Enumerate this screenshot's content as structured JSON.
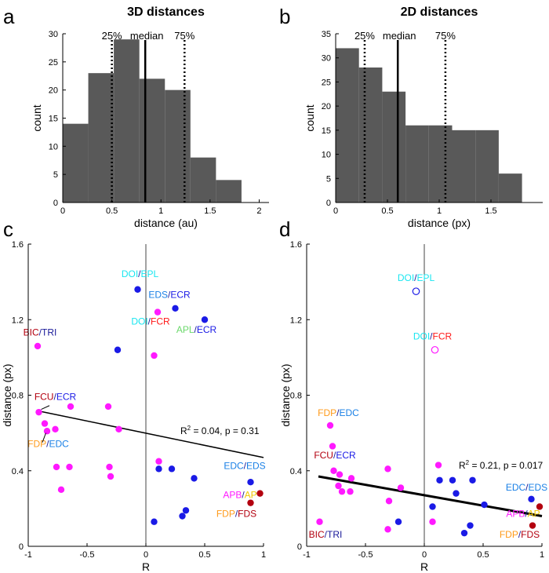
{
  "colors": {
    "bar": "#595959",
    "magenta": "#ff19ff",
    "blue": "#1a1ae6",
    "darkred": "#b3000f",
    "cyan": "#19e6f0",
    "green": "#6bd96b",
    "red": "#ff1a1a",
    "navy": "#1a1a99",
    "orange": "#ff9a1a",
    "lightblue": "#1a80e6",
    "yellow": "#f0c800"
  },
  "chart_data": [
    {
      "id": "a",
      "panel_letter": "a",
      "type": "bar",
      "title": "3D distances",
      "xlabel": "distance (au)",
      "ylabel": "count",
      "xlim": [
        0,
        2.1
      ],
      "ylim": [
        0,
        30
      ],
      "xticks": [
        0,
        0.5,
        1,
        1.5,
        2
      ],
      "xtick_labels": [
        "0",
        "0.5",
        "1",
        "1.5",
        "2"
      ],
      "yticks": [
        0,
        5,
        10,
        15,
        20,
        25,
        30
      ],
      "ytick_labels": [
        "0",
        "5",
        "10",
        "15",
        "20",
        "25",
        "30"
      ],
      "bin_edges": [
        0,
        0.26,
        0.52,
        0.78,
        1.04,
        1.3,
        1.56,
        1.82,
        2.08
      ],
      "counts": [
        14,
        23,
        29,
        22,
        20,
        8,
        4,
        0
      ],
      "vlines": [
        {
          "x": 0.5,
          "style": "dotted",
          "label": "25%"
        },
        {
          "x": 0.84,
          "style": "solid",
          "label": "median"
        },
        {
          "x": 1.24,
          "style": "dotted",
          "label": "75%"
        }
      ]
    },
    {
      "id": "b",
      "panel_letter": "b",
      "type": "bar",
      "title": "2D distances",
      "xlabel": "distance (px)",
      "ylabel": "count",
      "xlim": [
        0,
        2.0
      ],
      "ylim": [
        0,
        35
      ],
      "xticks": [
        0,
        0.5,
        1,
        1.5
      ],
      "xtick_labels": [
        "0",
        "0.5",
        "1",
        "1.5"
      ],
      "yticks": [
        0,
        5,
        10,
        15,
        20,
        25,
        30,
        35
      ],
      "ytick_labels": [
        "0",
        "5",
        "10",
        "15",
        "20",
        "25",
        "30",
        "35"
      ],
      "bin_edges": [
        0,
        0.225,
        0.45,
        0.675,
        0.9,
        1.125,
        1.35,
        1.575,
        1.8
      ],
      "counts": [
        32,
        28,
        23,
        16,
        16,
        15,
        15,
        6
      ],
      "vlines": [
        {
          "x": 0.28,
          "style": "dotted",
          "label": "25%"
        },
        {
          "x": 0.6,
          "style": "solid",
          "label": "median"
        },
        {
          "x": 1.06,
          "style": "dotted",
          "label": "75%"
        }
      ]
    },
    {
      "id": "c",
      "panel_letter": "c",
      "type": "scatter",
      "xlabel": "R",
      "ylabel": "distance (px)",
      "xlim": [
        -1,
        1
      ],
      "ylim": [
        0,
        1.6
      ],
      "xticks": [
        -1,
        -0.5,
        0,
        0.5,
        1
      ],
      "xtick_labels": [
        "-1",
        "-0.5",
        "0",
        "0.5",
        "1"
      ],
      "yticks": [
        0,
        0.4,
        0.8,
        1.2,
        1.6
      ],
      "ytick_labels": [
        "0",
        "0.4",
        "0.8",
        "1.2",
        "1.6"
      ],
      "zero_line": true,
      "fit": {
        "x": [
          -0.9,
          1.0
        ],
        "y": [
          0.715,
          0.47
        ],
        "width": 1.5,
        "label_main": "R",
        "label_sup": "2",
        "label_rest": " = 0.04, p = 0.31"
      },
      "points": [
        {
          "x": -0.07,
          "y": 1.36,
          "color": "blue",
          "filled": true
        },
        {
          "x": 0.25,
          "y": 1.26,
          "color": "blue",
          "filled": true
        },
        {
          "x": 0.5,
          "y": 1.2,
          "color": "blue",
          "filled": true
        },
        {
          "x": 0.1,
          "y": 1.24,
          "color": "magenta",
          "filled": true
        },
        {
          "x": -0.92,
          "y": 1.06,
          "color": "magenta",
          "filled": true
        },
        {
          "x": -0.24,
          "y": 1.04,
          "color": "blue",
          "filled": true
        },
        {
          "x": 0.07,
          "y": 1.01,
          "color": "magenta",
          "filled": true
        },
        {
          "x": -0.91,
          "y": 0.71,
          "color": "magenta",
          "filled": true
        },
        {
          "x": -0.64,
          "y": 0.74,
          "color": "magenta",
          "filled": true
        },
        {
          "x": -0.32,
          "y": 0.74,
          "color": "magenta",
          "filled": true
        },
        {
          "x": -0.86,
          "y": 0.65,
          "color": "magenta",
          "filled": true
        },
        {
          "x": -0.84,
          "y": 0.61,
          "color": "magenta",
          "filled": true
        },
        {
          "x": -0.77,
          "y": 0.62,
          "color": "magenta",
          "filled": true
        },
        {
          "x": -0.23,
          "y": 0.62,
          "color": "magenta",
          "filled": true
        },
        {
          "x": 0.11,
          "y": 0.45,
          "color": "magenta",
          "filled": true
        },
        {
          "x": -0.76,
          "y": 0.42,
          "color": "magenta",
          "filled": true
        },
        {
          "x": -0.65,
          "y": 0.42,
          "color": "magenta",
          "filled": true
        },
        {
          "x": -0.31,
          "y": 0.42,
          "color": "magenta",
          "filled": true
        },
        {
          "x": -0.3,
          "y": 0.37,
          "color": "magenta",
          "filled": true
        },
        {
          "x": -0.72,
          "y": 0.3,
          "color": "magenta",
          "filled": true
        },
        {
          "x": 0.11,
          "y": 0.41,
          "color": "blue",
          "filled": true
        },
        {
          "x": 0.22,
          "y": 0.41,
          "color": "blue",
          "filled": true
        },
        {
          "x": 0.41,
          "y": 0.36,
          "color": "blue",
          "filled": true
        },
        {
          "x": 0.89,
          "y": 0.34,
          "color": "blue",
          "filled": true
        },
        {
          "x": 0.34,
          "y": 0.19,
          "color": "blue",
          "filled": true
        },
        {
          "x": 0.31,
          "y": 0.16,
          "color": "blue",
          "filled": true
        },
        {
          "x": 0.07,
          "y": 0.13,
          "color": "blue",
          "filled": true
        },
        {
          "x": 0.97,
          "y": 0.28,
          "color": "darkred",
          "filled": true
        },
        {
          "x": 0.89,
          "y": 0.23,
          "color": "darkred",
          "filled": true
        }
      ],
      "annotations": [
        {
          "x": -0.05,
          "y": 1.425,
          "anchor": "middle",
          "parts": [
            {
              "t": "DOI",
              "c": "cyan"
            },
            {
              "t": "/",
              "c": "navy"
            },
            {
              "t": "EPL",
              "c": "cyan"
            }
          ]
        },
        {
          "x": 0.2,
          "y": 1.315,
          "anchor": "middle",
          "parts": [
            {
              "t": "EDS",
              "c": "lightblue"
            },
            {
              "t": "/",
              "c": "navy"
            },
            {
              "t": "ECR",
              "c": "blue"
            }
          ]
        },
        {
          "x": 0.04,
          "y": 1.175,
          "anchor": "middle",
          "parts": [
            {
              "t": "DOI",
              "c": "cyan"
            },
            {
              "t": "/",
              "c": "navy"
            },
            {
              "t": "FCR",
              "c": "red"
            }
          ]
        },
        {
          "x": 0.43,
          "y": 1.13,
          "anchor": "middle",
          "parts": [
            {
              "t": "APL",
              "c": "green"
            },
            {
              "t": "/",
              "c": "navy"
            },
            {
              "t": "ECR",
              "c": "blue"
            }
          ]
        },
        {
          "x": -0.9,
          "y": 1.115,
          "anchor": "middle",
          "parts": [
            {
              "t": "BIC",
              "c": "darkred"
            },
            {
              "t": "/",
              "c": "navy"
            },
            {
              "t": "TRI",
              "c": "navy"
            }
          ]
        },
        {
          "x": -0.77,
          "y": 0.775,
          "anchor": "middle",
          "parts": [
            {
              "t": "FCU",
              "c": "darkred"
            },
            {
              "t": "/",
              "c": "navy"
            },
            {
              "t": "ECR",
              "c": "blue"
            }
          ]
        },
        {
          "x": -0.83,
          "y": 0.525,
          "anchor": "middle",
          "parts": [
            {
              "t": "FDP",
              "c": "orange"
            },
            {
              "t": "/",
              "c": "navy"
            },
            {
              "t": "EDC",
              "c": "lightblue"
            }
          ]
        },
        {
          "x": 0.84,
          "y": 0.41,
          "anchor": "middle",
          "parts": [
            {
              "t": "EDC",
              "c": "lightblue"
            },
            {
              "t": "/",
              "c": "navy"
            },
            {
              "t": "EDS",
              "c": "lightblue"
            }
          ]
        },
        {
          "x": 0.8,
          "y": 0.255,
          "anchor": "middle",
          "parts": [
            {
              "t": "APB",
              "c": "magenta"
            },
            {
              "t": "/",
              "c": "navy"
            },
            {
              "t": "AP",
              "c": "yellow"
            }
          ]
        },
        {
          "x": 0.77,
          "y": 0.155,
          "anchor": "middle",
          "parts": [
            {
              "t": "FDP",
              "c": "orange"
            },
            {
              "t": "/",
              "c": "navy"
            },
            {
              "t": "FDS",
              "c": "darkred"
            }
          ]
        }
      ]
    },
    {
      "id": "d",
      "panel_letter": "d",
      "type": "scatter",
      "xlabel": "R",
      "ylabel": "distance (px)",
      "xlim": [
        -1,
        1
      ],
      "ylim": [
        0,
        1.6
      ],
      "xticks": [
        -1,
        -0.5,
        0,
        0.5,
        1
      ],
      "xtick_labels": [
        "-1",
        "-0.5",
        "0",
        "0.5",
        "1"
      ],
      "yticks": [
        0,
        0.4,
        0.8,
        1.2,
        1.6
      ],
      "ytick_labels": [
        "0",
        "0.4",
        "0.8",
        "1.2",
        "1.6"
      ],
      "zero_line": true,
      "fit": {
        "x": [
          -0.9,
          1.0
        ],
        "y": [
          0.37,
          0.16
        ],
        "width": 3,
        "label_main": "R",
        "label_sup": "2",
        "label_rest": " = 0.21, p = 0.017"
      },
      "points": [
        {
          "x": -0.07,
          "y": 1.35,
          "color": "blue",
          "filled": false
        },
        {
          "x": 0.09,
          "y": 1.04,
          "color": "magenta",
          "filled": false
        },
        {
          "x": -0.8,
          "y": 0.64,
          "color": "magenta",
          "filled": true
        },
        {
          "x": -0.78,
          "y": 0.53,
          "color": "magenta",
          "filled": true
        },
        {
          "x": -0.77,
          "y": 0.4,
          "color": "magenta",
          "filled": true
        },
        {
          "x": -0.72,
          "y": 0.38,
          "color": "magenta",
          "filled": true
        },
        {
          "x": -0.62,
          "y": 0.36,
          "color": "magenta",
          "filled": true
        },
        {
          "x": -0.73,
          "y": 0.32,
          "color": "magenta",
          "filled": true
        },
        {
          "x": -0.7,
          "y": 0.29,
          "color": "magenta",
          "filled": true
        },
        {
          "x": -0.63,
          "y": 0.29,
          "color": "magenta",
          "filled": true
        },
        {
          "x": -0.31,
          "y": 0.41,
          "color": "magenta",
          "filled": true
        },
        {
          "x": -0.2,
          "y": 0.31,
          "color": "magenta",
          "filled": true
        },
        {
          "x": -0.3,
          "y": 0.24,
          "color": "magenta",
          "filled": true
        },
        {
          "x": -0.31,
          "y": 0.09,
          "color": "magenta",
          "filled": true
        },
        {
          "x": 0.12,
          "y": 0.43,
          "color": "magenta",
          "filled": true
        },
        {
          "x": 0.07,
          "y": 0.13,
          "color": "magenta",
          "filled": true
        },
        {
          "x": -0.89,
          "y": 0.13,
          "color": "magenta",
          "filled": true
        },
        {
          "x": 0.13,
          "y": 0.35,
          "color": "blue",
          "filled": true
        },
        {
          "x": 0.24,
          "y": 0.35,
          "color": "blue",
          "filled": true
        },
        {
          "x": 0.41,
          "y": 0.35,
          "color": "blue",
          "filled": true
        },
        {
          "x": 0.27,
          "y": 0.28,
          "color": "blue",
          "filled": true
        },
        {
          "x": 0.51,
          "y": 0.22,
          "color": "blue",
          "filled": true
        },
        {
          "x": 0.07,
          "y": 0.21,
          "color": "blue",
          "filled": true
        },
        {
          "x": 0.91,
          "y": 0.25,
          "color": "blue",
          "filled": true
        },
        {
          "x": -0.22,
          "y": 0.13,
          "color": "blue",
          "filled": true
        },
        {
          "x": 0.39,
          "y": 0.11,
          "color": "blue",
          "filled": true
        },
        {
          "x": 0.34,
          "y": 0.07,
          "color": "blue",
          "filled": true
        },
        {
          "x": 0.98,
          "y": 0.21,
          "color": "darkred",
          "filled": true
        },
        {
          "x": 0.92,
          "y": 0.11,
          "color": "darkred",
          "filled": true
        }
      ],
      "annotations": [
        {
          "x": -0.07,
          "y": 1.405,
          "anchor": "middle",
          "parts": [
            {
              "t": "DOI",
              "c": "cyan"
            },
            {
              "t": "/",
              "c": "navy"
            },
            {
              "t": "EPL",
              "c": "cyan"
            }
          ]
        },
        {
          "x": 0.07,
          "y": 1.095,
          "anchor": "middle",
          "parts": [
            {
              "t": "DOI",
              "c": "cyan"
            },
            {
              "t": "/",
              "c": "navy"
            },
            {
              "t": "FCR",
              "c": "red"
            }
          ]
        },
        {
          "x": -0.73,
          "y": 0.69,
          "anchor": "middle",
          "parts": [
            {
              "t": "FDP",
              "c": "orange"
            },
            {
              "t": "/",
              "c": "navy"
            },
            {
              "t": "EDC",
              "c": "lightblue"
            }
          ]
        },
        {
          "x": -0.76,
          "y": 0.465,
          "anchor": "middle",
          "parts": [
            {
              "t": "FCU",
              "c": "darkred"
            },
            {
              "t": "/",
              "c": "navy"
            },
            {
              "t": "ECR",
              "c": "blue"
            }
          ]
        },
        {
          "x": 0.87,
          "y": 0.295,
          "anchor": "middle",
          "parts": [
            {
              "t": "EDC",
              "c": "lightblue"
            },
            {
              "t": "/",
              "c": "navy"
            },
            {
              "t": "EDS",
              "c": "lightblue"
            }
          ]
        },
        {
          "x": 0.84,
          "y": 0.155,
          "anchor": "middle",
          "parts": [
            {
              "t": "APB",
              "c": "magenta"
            },
            {
              "t": "/",
              "c": "navy"
            },
            {
              "t": "AP",
              "c": "yellow"
            }
          ]
        },
        {
          "x": 0.81,
          "y": 0.045,
          "anchor": "middle",
          "parts": [
            {
              "t": "FDP",
              "c": "orange"
            },
            {
              "t": "/",
              "c": "navy"
            },
            {
              "t": "FDS",
              "c": "darkred"
            }
          ]
        },
        {
          "x": -0.84,
          "y": 0.045,
          "anchor": "middle",
          "parts": [
            {
              "t": "BIC",
              "c": "darkred"
            },
            {
              "t": "/",
              "c": "navy"
            },
            {
              "t": "TRI",
              "c": "navy"
            }
          ]
        }
      ]
    }
  ]
}
